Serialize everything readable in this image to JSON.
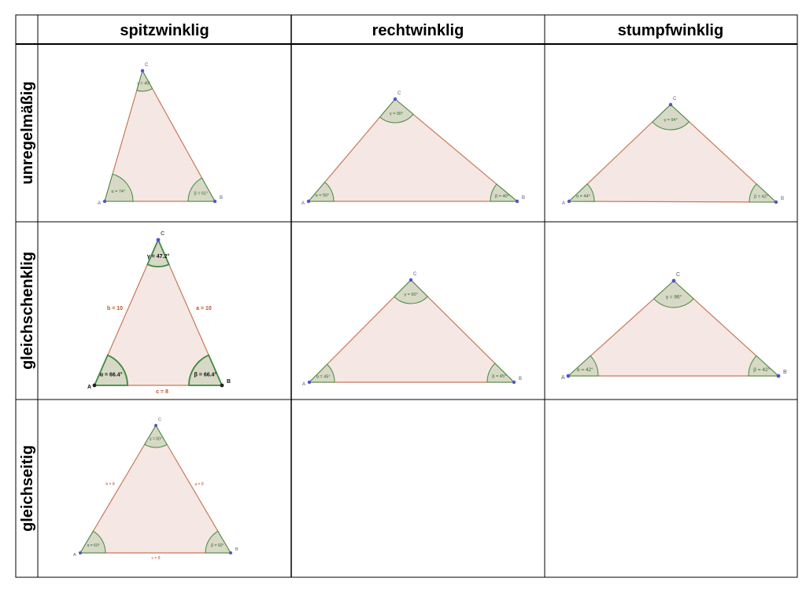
{
  "columns": [
    "spitzwinklig",
    "rechtwinklig",
    "stumpfwinklig"
  ],
  "rows": [
    "unregelmäßig",
    "gleichschenklig",
    "gleichseitig"
  ],
  "colors": {
    "fill": "#f5e7e3",
    "edge": "#c8785a",
    "angle_fill": "#d8d8c6",
    "angle_stroke": "#3f8a3f",
    "angle_text": "#2c6e2c",
    "point": "#5252d6",
    "point_dark": "#222222",
    "side_text": "#c0502a"
  },
  "triangles": [
    {
      "row": 0,
      "col": 0,
      "vertex_labels": [
        "A",
        "B",
        "C"
      ],
      "angles": [
        "α = 74°",
        "β = 61°",
        "γ = 45°"
      ],
      "sides": []
    },
    {
      "row": 0,
      "col": 1,
      "vertex_labels": [
        "A",
        "B",
        "C"
      ],
      "angles": [
        "α = 50°",
        "β = 40°",
        "γ = 90°"
      ],
      "sides": []
    },
    {
      "row": 0,
      "col": 2,
      "vertex_labels": [
        "A",
        "B",
        "C"
      ],
      "angles": [
        "α = 44°",
        "β = 42°",
        "γ = 94°"
      ],
      "sides": []
    },
    {
      "row": 1,
      "col": 0,
      "vertex_labels": [
        "A",
        "B",
        "C"
      ],
      "angles": [
        "α = 66.4°",
        "β = 66.4°",
        "γ = 47.2°"
      ],
      "sides": [
        "c = 8",
        "a = 10",
        "b = 10"
      ]
    },
    {
      "row": 1,
      "col": 1,
      "vertex_labels": [
        "A",
        "B",
        "C"
      ],
      "angles": [
        "α = 45°",
        "β = 45°",
        "γ = 90°"
      ],
      "sides": []
    },
    {
      "row": 1,
      "col": 2,
      "vertex_labels": [
        "A",
        "B",
        "C"
      ],
      "angles": [
        "α = 42°",
        "β = 42°",
        "γ = 96°"
      ],
      "sides": []
    },
    {
      "row": 2,
      "col": 0,
      "vertex_labels": [
        "A",
        "B",
        "C"
      ],
      "angles": [
        "α = 60°",
        "β = 60°",
        "γ = 60°"
      ],
      "sides": [
        "c = 8",
        "a = 8",
        "b = 8"
      ]
    }
  ]
}
